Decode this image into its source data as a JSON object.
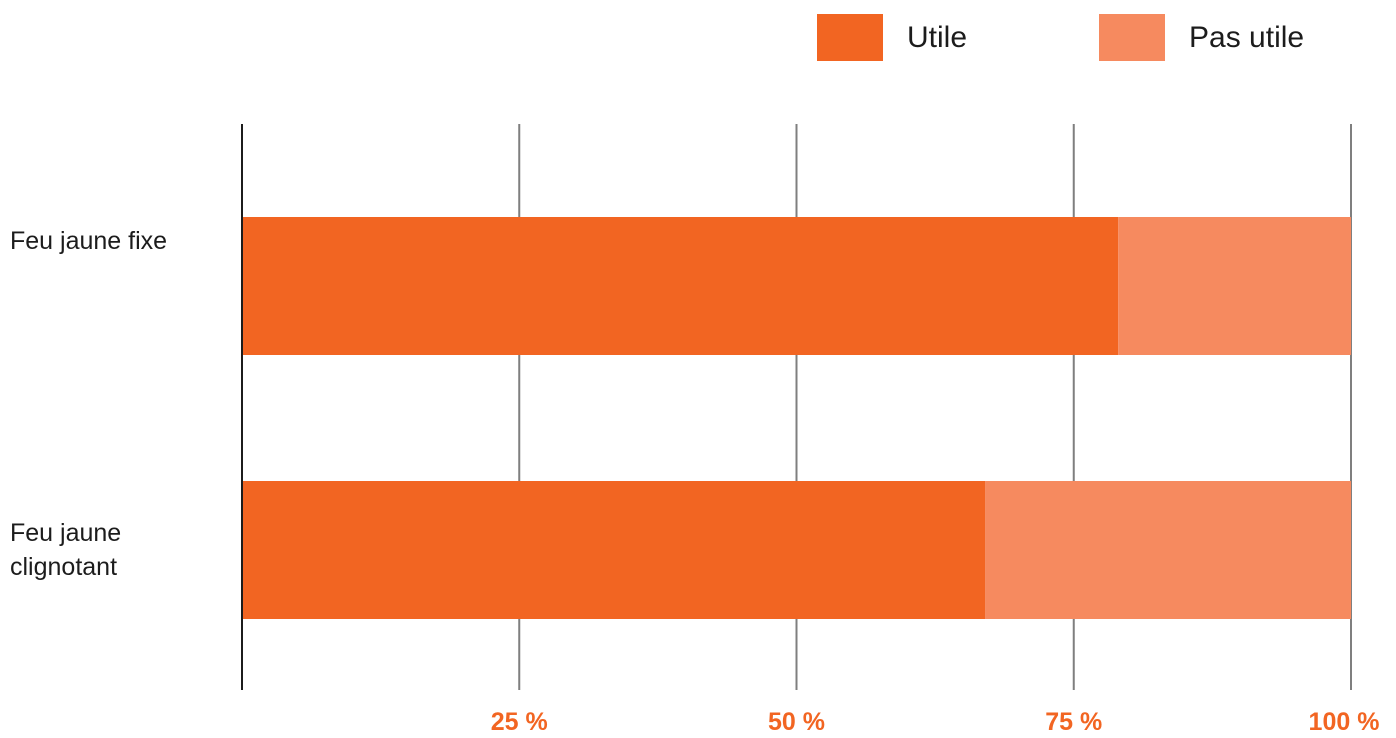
{
  "chart_data": {
    "type": "bar",
    "orientation": "horizontal",
    "stacked": true,
    "categories": [
      "Feu jaune fixe",
      "Feu jaune clignotant"
    ],
    "series": [
      {
        "name": "Utile",
        "values": [
          79,
          67
        ],
        "color": "#f26522"
      },
      {
        "name": "Pas utile",
        "values": [
          21,
          33
        ],
        "color": "#f68a5f"
      }
    ],
    "xlim": [
      0,
      100
    ],
    "ticks": [
      {
        "value": 25,
        "label": "25 %"
      },
      {
        "value": 50,
        "label": "50 %"
      },
      {
        "value": 75,
        "label": "75 %"
      },
      {
        "value": 100,
        "label": "100 %"
      }
    ],
    "grid": true,
    "legend_position": "top-right",
    "axis_color": "#1c1c1c",
    "grid_color": "#7f7f7f"
  }
}
